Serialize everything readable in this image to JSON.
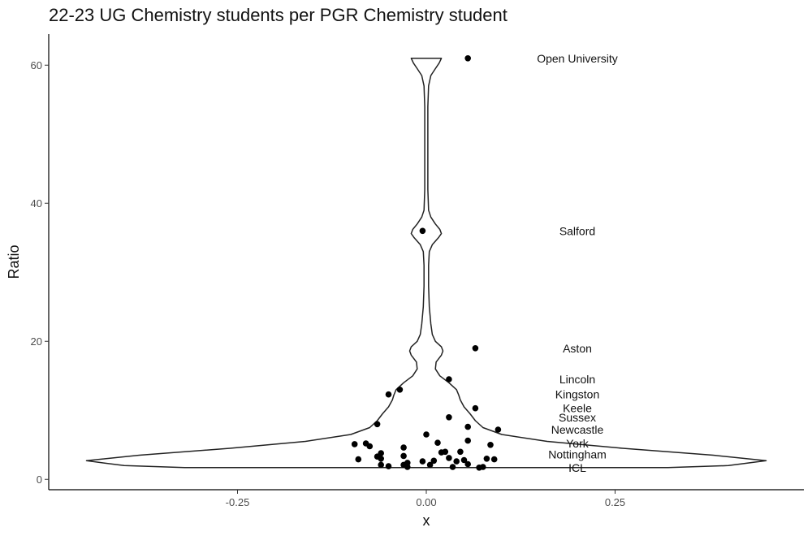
{
  "chart_data": {
    "type": "scatter",
    "title": "22-23 UG Chemistry students per PGR Chemistry student",
    "xlabel": "x",
    "ylabel": "Ratio",
    "xlim": [
      -0.5,
      0.5
    ],
    "ylim": [
      -1.5,
      64.5
    ],
    "x_ticks": [
      -0.25,
      0,
      0.25
    ],
    "x_tick_labels": [
      "-0.25",
      "0.00",
      "0.25"
    ],
    "y_ticks": [
      0,
      20,
      40,
      60
    ],
    "y_tick_labels": [
      "0",
      "20",
      "40",
      "60"
    ],
    "grid": false,
    "legend": "none",
    "point_color": "#000000",
    "violin_color": "#222222",
    "points": [
      {
        "x": 0.055,
        "y": 61
      },
      {
        "x": -0.005,
        "y": 36
      },
      {
        "x": 0.065,
        "y": 19
      },
      {
        "x": 0.03,
        "y": 14.5
      },
      {
        "x": -0.035,
        "y": 13
      },
      {
        "x": -0.05,
        "y": 12.3
      },
      {
        "x": 0.065,
        "y": 10.3
      },
      {
        "x": 0.03,
        "y": 9
      },
      {
        "x": -0.065,
        "y": 8
      },
      {
        "x": 0.095,
        "y": 7.2
      },
      {
        "x": 0.055,
        "y": 7.6
      },
      {
        "x": 0.0,
        "y": 6.5
      },
      {
        "x": 0.055,
        "y": 5.6
      },
      {
        "x": 0.015,
        "y": 5.3
      },
      {
        "x": 0.085,
        "y": 5
      },
      {
        "x": -0.095,
        "y": 5.1
      },
      {
        "x": -0.08,
        "y": 5.2
      },
      {
        "x": -0.075,
        "y": 4.8
      },
      {
        "x": -0.03,
        "y": 4.6
      },
      {
        "x": 0.025,
        "y": 4
      },
      {
        "x": 0.045,
        "y": 4
      },
      {
        "x": -0.06,
        "y": 3.8
      },
      {
        "x": -0.065,
        "y": 3.3
      },
      {
        "x": -0.03,
        "y": 3.4
      },
      {
        "x": 0.02,
        "y": 3.9
      },
      {
        "x": 0.03,
        "y": 3.1
      },
      {
        "x": -0.09,
        "y": 2.9
      },
      {
        "x": -0.06,
        "y": 3
      },
      {
        "x": 0.08,
        "y": 3
      },
      {
        "x": 0.09,
        "y": 2.9
      },
      {
        "x": 0.01,
        "y": 2.7
      },
      {
        "x": -0.005,
        "y": 2.6
      },
      {
        "x": 0.05,
        "y": 2.8
      },
      {
        "x": 0.04,
        "y": 2.6
      },
      {
        "x": -0.025,
        "y": 2.4
      },
      {
        "x": -0.06,
        "y": 2.1
      },
      {
        "x": -0.03,
        "y": 2.1
      },
      {
        "x": 0.005,
        "y": 2.1
      },
      {
        "x": 0.055,
        "y": 2.2
      },
      {
        "x": -0.05,
        "y": 1.9
      },
      {
        "x": -0.025,
        "y": 1.8
      },
      {
        "x": 0.035,
        "y": 1.8
      },
      {
        "x": 0.075,
        "y": 1.8
      },
      {
        "x": 0.07,
        "y": 1.7
      }
    ],
    "annotations": [
      {
        "label": "Open University",
        "x": 0.2,
        "y": 61
      },
      {
        "label": "Salford",
        "x": 0.2,
        "y": 36
      },
      {
        "label": "Aston",
        "x": 0.2,
        "y": 19
      },
      {
        "label": "Lincoln",
        "x": 0.2,
        "y": 14.5
      },
      {
        "label": "Kingston",
        "x": 0.2,
        "y": 12.3
      },
      {
        "label": "Keele",
        "x": 0.2,
        "y": 10.3
      },
      {
        "label": "Sussex",
        "x": 0.2,
        "y": 9
      },
      {
        "label": "Newcastle",
        "x": 0.2,
        "y": 7.2
      },
      {
        "label": "York",
        "x": 0.2,
        "y": 5.2
      },
      {
        "label": "Nottingham",
        "x": 0.2,
        "y": 3.6
      },
      {
        "label": "ICL",
        "x": 0.2,
        "y": 1.7
      }
    ],
    "violin": {
      "y": [
        1.7,
        2.0,
        2.7,
        3.5,
        4.5,
        5.5,
        6.5,
        7.5,
        8.5,
        9.5,
        10.5,
        11.5,
        12.2,
        13.0,
        14.0,
        15.0,
        16.0,
        17.0,
        18.0,
        18.6,
        19.2,
        20.0,
        21.0,
        22.5,
        25.0,
        28.0,
        31.0,
        33.0,
        34.0,
        35.0,
        35.6,
        36.2,
        37.0,
        38.0,
        39.0,
        42.0,
        46.0,
        50.0,
        54.0,
        57.0,
        58.5,
        59.5,
        60.3,
        61.0
      ],
      "half_width": [
        0.32,
        0.4,
        0.45,
        0.38,
        0.26,
        0.16,
        0.1,
        0.075,
        0.065,
        0.058,
        0.05,
        0.045,
        0.043,
        0.04,
        0.03,
        0.018,
        0.012,
        0.013,
        0.02,
        0.022,
        0.02,
        0.012,
        0.008,
        0.006,
        0.004,
        0.003,
        0.003,
        0.004,
        0.008,
        0.016,
        0.02,
        0.018,
        0.012,
        0.006,
        0.003,
        0.002,
        0.002,
        0.002,
        0.002,
        0.003,
        0.006,
        0.012,
        0.017,
        0.02
      ]
    }
  }
}
